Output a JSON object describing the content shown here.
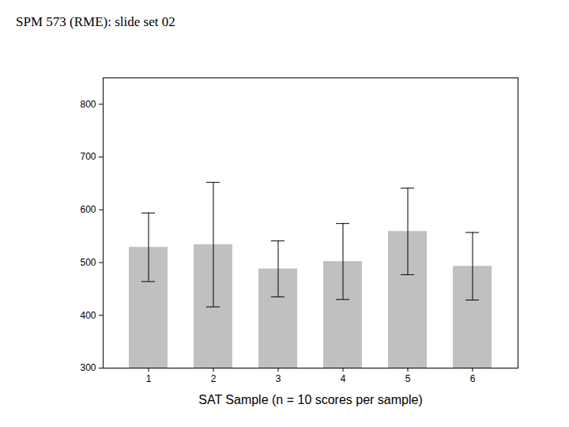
{
  "chart_data": {
    "type": "bar",
    "title": "SPM 573 (RME): slide set 02",
    "x_label": "SAT Sample (n = 10 scores per sample)",
    "categories": [
      "1",
      "2",
      "3",
      "4",
      "5",
      "6"
    ],
    "values": [
      529,
      534,
      488,
      502,
      559,
      493
    ],
    "errors": [
      65,
      118,
      53,
      72,
      82,
      64
    ],
    "color": "#c0c0c0",
    "ylim": [
      300,
      850
    ],
    "yticks": [
      300,
      400,
      500,
      600,
      700,
      800
    ],
    "grid": false
  }
}
